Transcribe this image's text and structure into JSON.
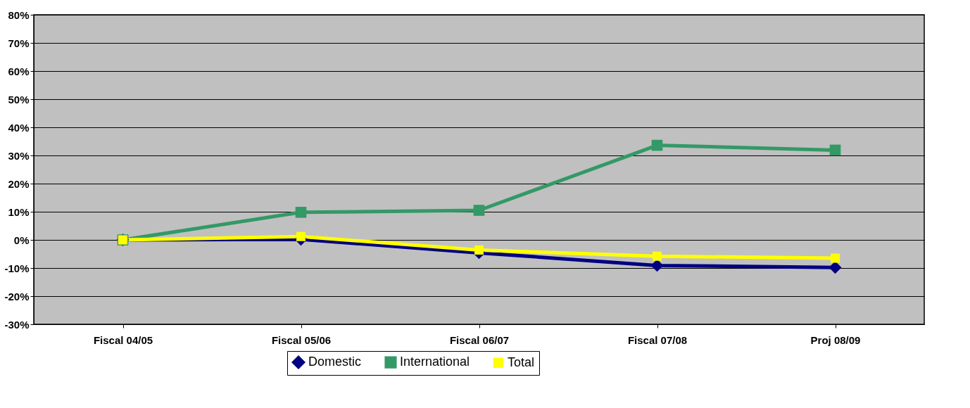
{
  "chart_data": {
    "type": "line",
    "categories": [
      "Fiscal 04/05",
      "Fiscal 05/06",
      "Fiscal 06/07",
      "Fiscal 07/08",
      "Proj 08/09"
    ],
    "series": [
      {
        "name": "Domestic",
        "color": "#000080",
        "marker": "diamond",
        "values": [
          0,
          0.2,
          -4.6,
          -9.1,
          -9.8
        ]
      },
      {
        "name": "International",
        "color": "#339966",
        "marker": "square",
        "values": [
          0,
          9.8,
          10.5,
          33.6,
          31.9
        ]
      },
      {
        "name": "Total",
        "color": "#ffff00",
        "marker": "square",
        "values": [
          0,
          1.2,
          -3.6,
          -5.8,
          -6.5
        ]
      }
    ],
    "ylim": [
      -30,
      80
    ],
    "yticks": [
      {
        "value": -30,
        "label": "-30%"
      },
      {
        "value": -20,
        "label": "-20%"
      },
      {
        "value": -10,
        "label": "-10%"
      },
      {
        "value": 0,
        "label": "0%"
      },
      {
        "value": 10,
        "label": "10%"
      },
      {
        "value": 20,
        "label": "20%"
      },
      {
        "value": 30,
        "label": "30%"
      },
      {
        "value": 40,
        "label": "40%"
      },
      {
        "value": 50,
        "label": "50%"
      },
      {
        "value": 60,
        "label": "60%"
      },
      {
        "value": 70,
        "label": "70%"
      },
      {
        "value": 80,
        "label": "80%"
      }
    ],
    "grid": "y",
    "legend": "bottom",
    "line_style": "solid"
  }
}
